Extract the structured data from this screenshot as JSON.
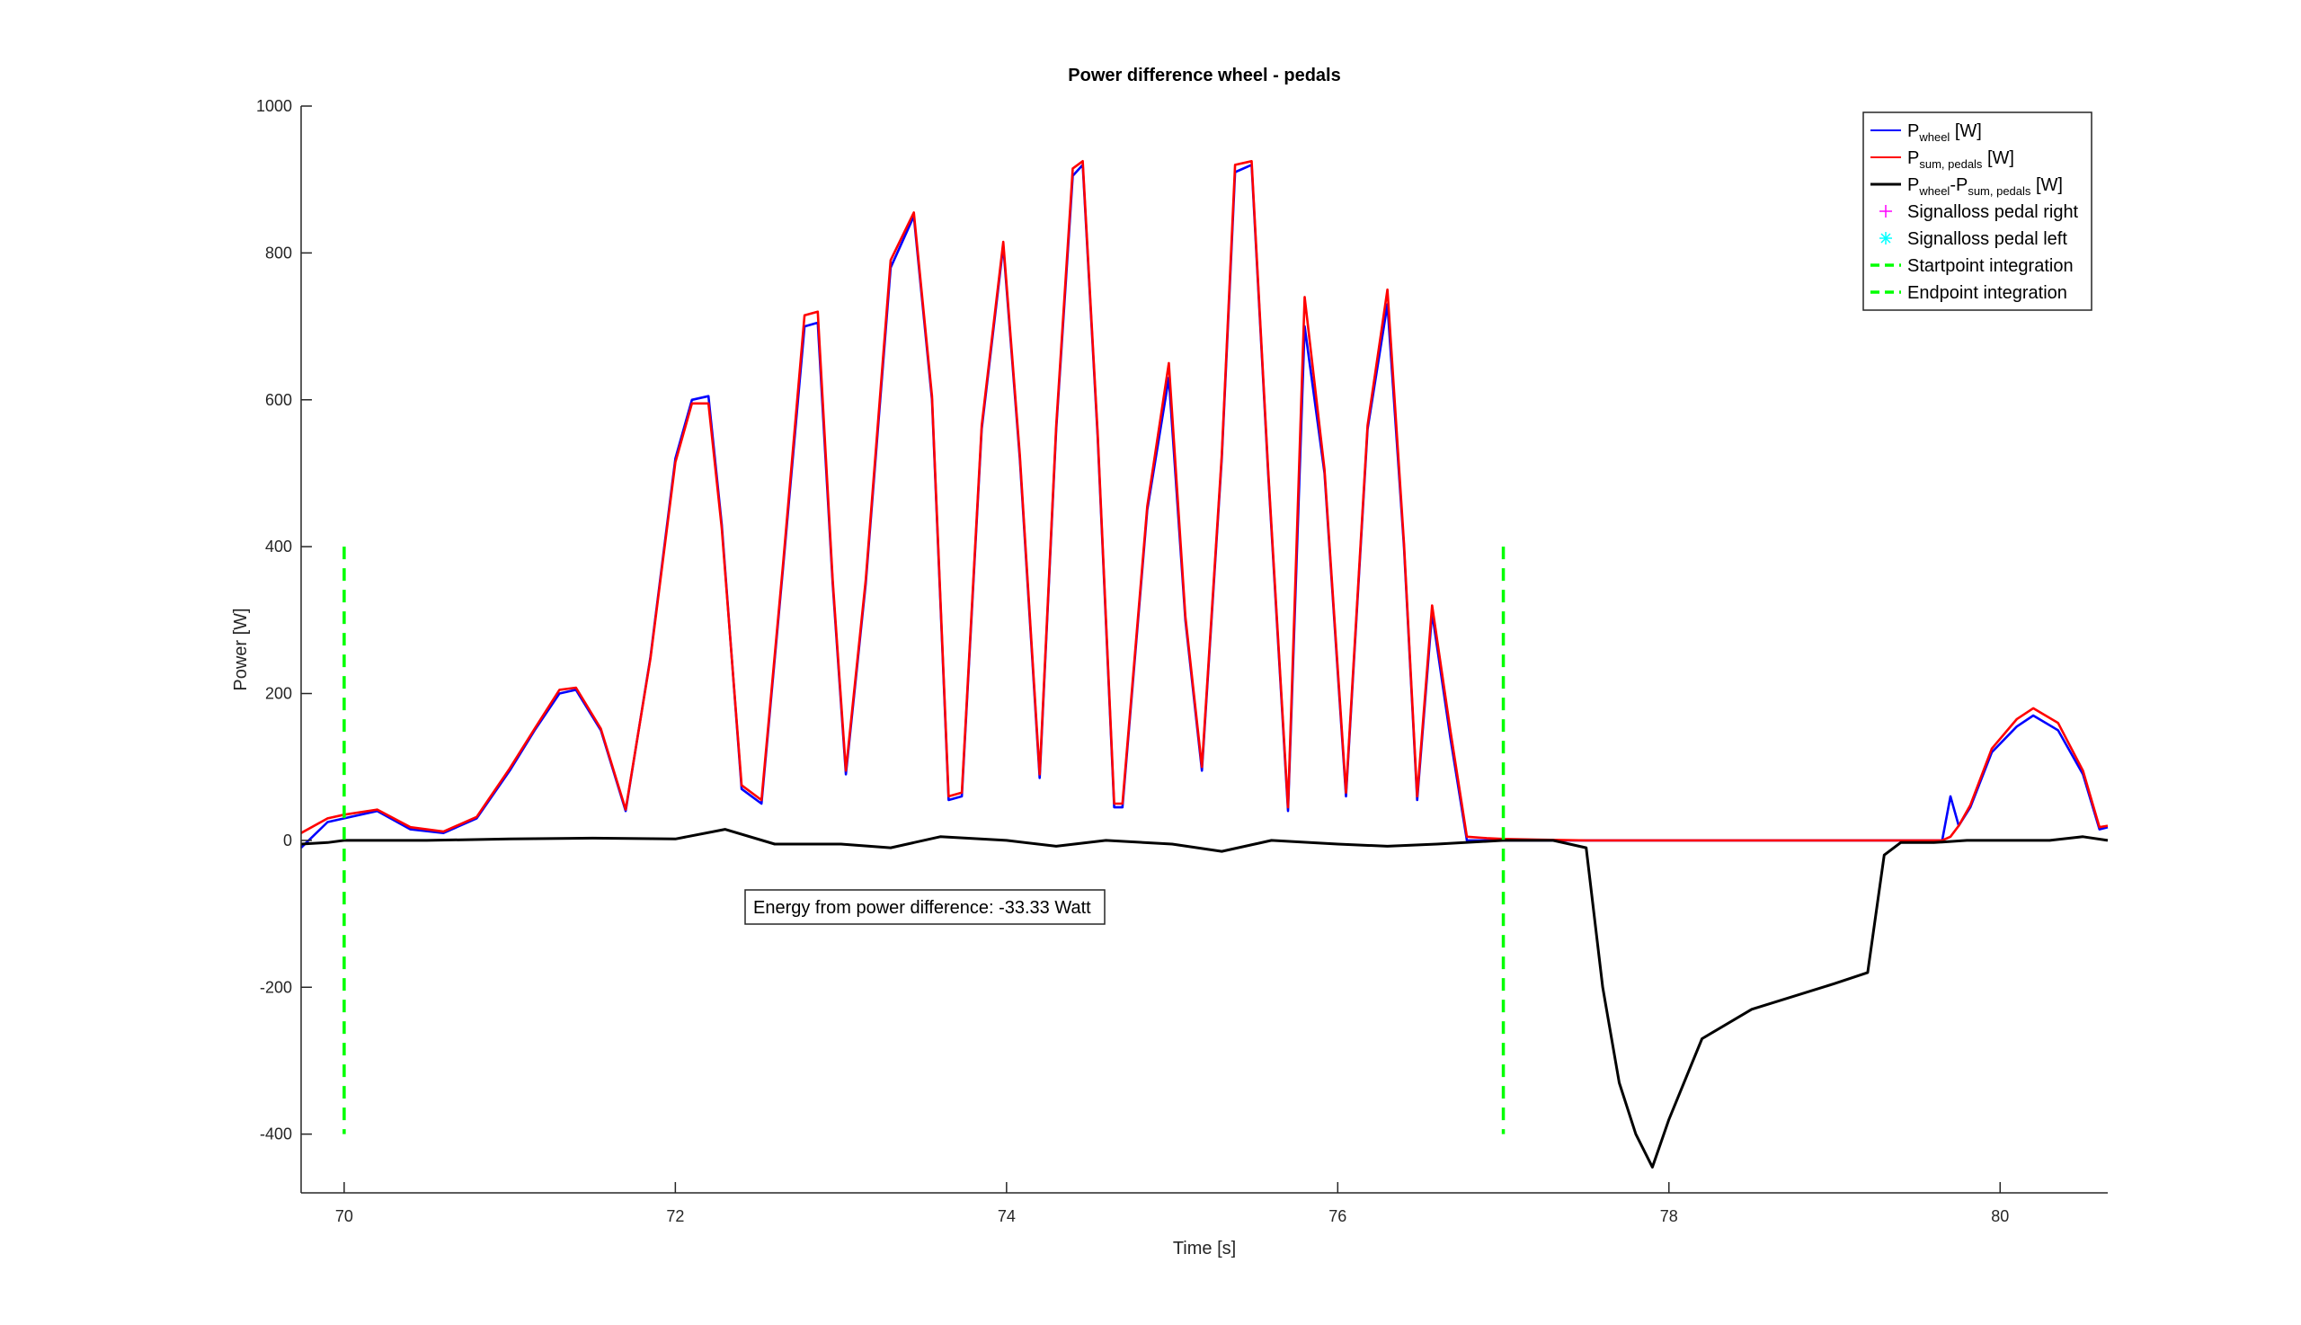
{
  "chart_data": {
    "type": "line",
    "title": "Power difference wheel - pedals",
    "xlabel": "Time [s]",
    "ylabel": "Power [W]",
    "xlim": [
      69.74,
      80.65
    ],
    "ylim": [
      -480,
      1000
    ],
    "xticks": [
      70,
      72,
      74,
      76,
      78,
      80
    ],
    "yticks": [
      -400,
      -200,
      0,
      200,
      400,
      600,
      800,
      1000
    ],
    "grid": false,
    "legend_position": "top-right",
    "colors": {
      "wheel": "#0000ff",
      "pedals": "#ff0000",
      "difference": "#000000",
      "signalloss_right": "#ff00ff",
      "signalloss_left": "#00ffff",
      "integration_markers": "#00ff00"
    },
    "legend": [
      {
        "key": "wheel",
        "main": "P",
        "sub": "wheel",
        "suffix": " [W]",
        "style": "line",
        "color": "#0000ff"
      },
      {
        "key": "pedals",
        "main": "P",
        "sub": "sum, pedals",
        "suffix": " [W]",
        "style": "line",
        "color": "#ff0000"
      },
      {
        "key": "difference",
        "main": "P",
        "sub": "wheel",
        "mid": "-P",
        "sub2": "sum, pedals",
        "suffix": " [W]",
        "style": "line",
        "color": "#000000"
      },
      {
        "key": "signalloss_right",
        "text": "Signalloss pedal right",
        "style": "plus",
        "color": "#ff00ff"
      },
      {
        "key": "signalloss_left",
        "text": "Signalloss pedal left",
        "style": "asterisk",
        "color": "#00ffff"
      },
      {
        "key": "startpoint",
        "text": "Startpoint integration",
        "style": "dashed",
        "color": "#00ff00"
      },
      {
        "key": "endpoint",
        "text": "Endpoint integration",
        "style": "dashed",
        "color": "#00ff00"
      }
    ],
    "annotation": "Energy from power difference: -33.33 Watt",
    "integration": {
      "start": 70.0,
      "end": 77.0,
      "y_range": [
        -400,
        400
      ]
    },
    "series": [
      {
        "key": "wheel",
        "x": [
          69.74,
          69.9,
          70.0,
          70.2,
          70.4,
          70.6,
          70.8,
          71.0,
          71.15,
          71.3,
          71.4,
          71.55,
          71.7,
          71.85,
          72.0,
          72.1,
          72.2,
          72.28,
          72.4,
          72.52,
          72.65,
          72.78,
          72.86,
          72.95,
          73.03,
          73.15,
          73.3,
          73.44,
          73.55,
          73.65,
          73.73,
          73.85,
          73.98,
          74.08,
          74.2,
          74.3,
          74.4,
          74.46,
          74.55,
          74.65,
          74.7,
          74.85,
          74.98,
          75.08,
          75.18,
          75.3,
          75.38,
          75.48,
          75.58,
          75.7,
          75.8,
          75.92,
          76.05,
          76.18,
          76.3,
          76.4,
          76.48,
          76.57,
          76.68,
          76.78,
          76.9,
          77.0,
          77.2,
          77.5,
          78.0,
          78.5,
          79.0,
          79.5,
          79.65,
          79.7,
          79.75,
          79.82,
          79.95,
          80.1,
          80.2,
          80.35,
          80.5,
          80.6,
          80.65
        ],
        "y": [
          -10,
          25,
          30,
          40,
          15,
          10,
          30,
          95,
          150,
          200,
          205,
          150,
          40,
          250,
          520,
          600,
          605,
          430,
          70,
          50,
          370,
          700,
          705,
          350,
          90,
          350,
          780,
          850,
          600,
          55,
          60,
          560,
          810,
          520,
          85,
          560,
          905,
          920,
          550,
          45,
          45,
          450,
          630,
          300,
          95,
          520,
          910,
          920,
          500,
          40,
          700,
          500,
          60,
          560,
          730,
          400,
          55,
          310,
          140,
          0,
          0,
          0,
          0,
          0,
          0,
          0,
          0,
          0,
          0,
          60,
          20,
          45,
          120,
          155,
          170,
          150,
          90,
          15,
          18
        ]
      },
      {
        "key": "pedals",
        "x": [
          69.74,
          69.9,
          70.0,
          70.2,
          70.4,
          70.6,
          70.8,
          71.0,
          71.15,
          71.3,
          71.4,
          71.55,
          71.7,
          71.85,
          72.0,
          72.1,
          72.2,
          72.28,
          72.4,
          72.52,
          72.65,
          72.78,
          72.86,
          72.95,
          73.03,
          73.15,
          73.3,
          73.44,
          73.55,
          73.65,
          73.73,
          73.85,
          73.98,
          74.08,
          74.2,
          74.3,
          74.4,
          74.46,
          74.55,
          74.65,
          74.7,
          74.85,
          74.98,
          75.08,
          75.18,
          75.3,
          75.38,
          75.48,
          75.58,
          75.7,
          75.8,
          75.92,
          76.05,
          76.18,
          76.3,
          76.4,
          76.48,
          76.57,
          76.68,
          76.78,
          76.9,
          77.0,
          77.2,
          77.5,
          78.0,
          78.5,
          79.0,
          79.5,
          79.65,
          79.7,
          79.75,
          79.82,
          79.95,
          80.1,
          80.2,
          80.35,
          80.5,
          80.6,
          80.65
        ],
        "y": [
          10,
          30,
          35,
          42,
          18,
          12,
          32,
          98,
          152,
          205,
          208,
          152,
          42,
          248,
          515,
          595,
          595,
          425,
          75,
          55,
          375,
          715,
          720,
          355,
          95,
          355,
          790,
          855,
          605,
          60,
          65,
          565,
          815,
          525,
          90,
          565,
          915,
          925,
          555,
          50,
          50,
          455,
          650,
          305,
          100,
          525,
          920,
          925,
          505,
          45,
          740,
          505,
          65,
          565,
          750,
          405,
          60,
          320,
          150,
          5,
          3,
          2,
          1,
          0,
          0,
          0,
          0,
          0,
          0,
          5,
          20,
          48,
          125,
          165,
          180,
          160,
          95,
          18,
          20
        ]
      },
      {
        "key": "difference",
        "x": [
          69.74,
          69.9,
          70.0,
          70.5,
          71.0,
          71.5,
          72.0,
          72.3,
          72.6,
          73.0,
          73.3,
          73.6,
          74.0,
          74.3,
          74.6,
          75.0,
          75.3,
          75.6,
          76.0,
          76.3,
          76.6,
          77.0,
          77.3,
          77.5,
          77.6,
          77.7,
          77.8,
          77.9,
          78.0,
          78.2,
          78.5,
          79.0,
          79.2,
          79.3,
          79.4,
          79.6,
          79.8,
          80.0,
          80.3,
          80.5,
          80.65
        ],
        "y": [
          -5,
          -3,
          0,
          0,
          2,
          3,
          2,
          15,
          -5,
          -5,
          -10,
          5,
          0,
          -8,
          0,
          -5,
          -15,
          0,
          -5,
          -8,
          -5,
          0,
          0,
          -10,
          -200,
          -330,
          -400,
          -445,
          -380,
          -270,
          -230,
          -195,
          -180,
          -20,
          -3,
          -3,
          0,
          0,
          0,
          5,
          0
        ]
      }
    ]
  }
}
